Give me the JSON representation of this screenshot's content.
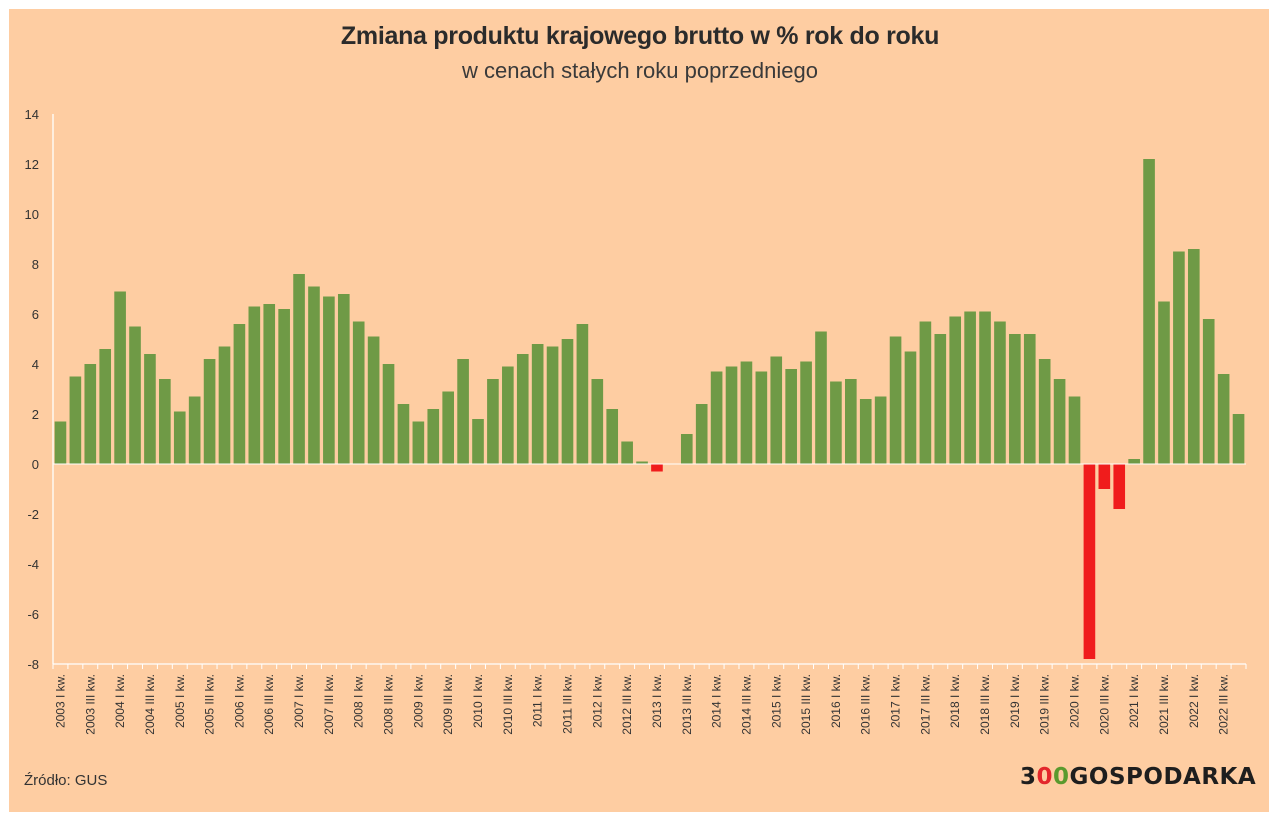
{
  "chart_data": {
    "type": "bar",
    "title": "Zmiana produktu krajowego brutto w % rok do roku",
    "subtitle": "w cenach stałych roku poprzedniego",
    "ylim": [
      -8,
      14
    ],
    "yticks": [
      -8,
      -6,
      -4,
      -2,
      0,
      2,
      4,
      6,
      8,
      10,
      12,
      14
    ],
    "grid": false,
    "legend": "none",
    "colors": {
      "positive": "#6f9a46",
      "negative": "#f01c1c",
      "axis": "#ffffff",
      "text": "#333333"
    },
    "categories": [
      "2003 I kw.",
      "",
      "2003 III kw.",
      "",
      "2004 I kw.",
      "",
      "2004 III kw.",
      "",
      "2005 I kw.",
      "",
      "2005 III kw.",
      "",
      "2006 I kw.",
      "",
      "2006 III kw.",
      "",
      "2007 I kw.",
      "",
      "2007 III kw.",
      "",
      "2008 I kw.",
      "",
      "2008 III kw.",
      "",
      "2009 I kw.",
      "",
      "2009 III kw.",
      "",
      "2010 I kw.",
      "",
      "2010 III kw.",
      "",
      "2011 I kw.",
      "",
      "2011 III kw.",
      "",
      "2012 I kw.",
      "",
      "2012 III kw.",
      "",
      "2013 I kw.",
      "",
      "2013 III kw.",
      "",
      "2014 I kw.",
      "",
      "2014 III kw.",
      "",
      "2015 I kw.",
      "",
      "2015 III kw.",
      "",
      "2016 I kw.",
      "",
      "2016 III kw.",
      "",
      "2017 I kw.",
      "",
      "2017 III kw.",
      "",
      "2018 I kw.",
      "",
      "2018 III kw.",
      "",
      "2019 I kw.",
      "",
      "2019 III kw.",
      "",
      "2020 I kw.",
      "",
      "2020 III kw.",
      "",
      "2021 I kw.",
      "",
      "2021 III kw.",
      "",
      "2022 I kw.",
      "",
      "2022 III kw.",
      ""
    ],
    "values": [
      1.7,
      3.5,
      4.0,
      4.6,
      6.9,
      5.5,
      4.4,
      3.4,
      2.1,
      2.7,
      4.2,
      4.7,
      5.6,
      6.3,
      6.4,
      6.2,
      7.6,
      7.1,
      6.7,
      6.8,
      5.7,
      5.1,
      4.0,
      2.4,
      1.7,
      2.2,
      2.9,
      4.2,
      1.8,
      3.4,
      3.9,
      4.4,
      4.8,
      4.7,
      5.0,
      5.6,
      3.4,
      2.2,
      0.9,
      0.1,
      -0.3,
      0.0,
      1.2,
      2.4,
      3.7,
      3.9,
      4.1,
      3.7,
      4.3,
      3.8,
      4.1,
      5.3,
      3.3,
      3.4,
      2.6,
      2.7,
      5.1,
      4.5,
      5.7,
      5.2,
      5.9,
      6.1,
      6.1,
      5.7,
      5.2,
      5.2,
      4.2,
      3.4,
      2.7,
      -7.8,
      -1.0,
      -1.8,
      0.2,
      12.2,
      6.5,
      8.5,
      8.6,
      5.8,
      3.6,
      2.0
    ]
  },
  "footer": {
    "source": "Źródło: GUS",
    "logo_a": "3",
    "logo_b": "0",
    "logo_c": "0",
    "logo_d": "GOSPODARKA"
  }
}
